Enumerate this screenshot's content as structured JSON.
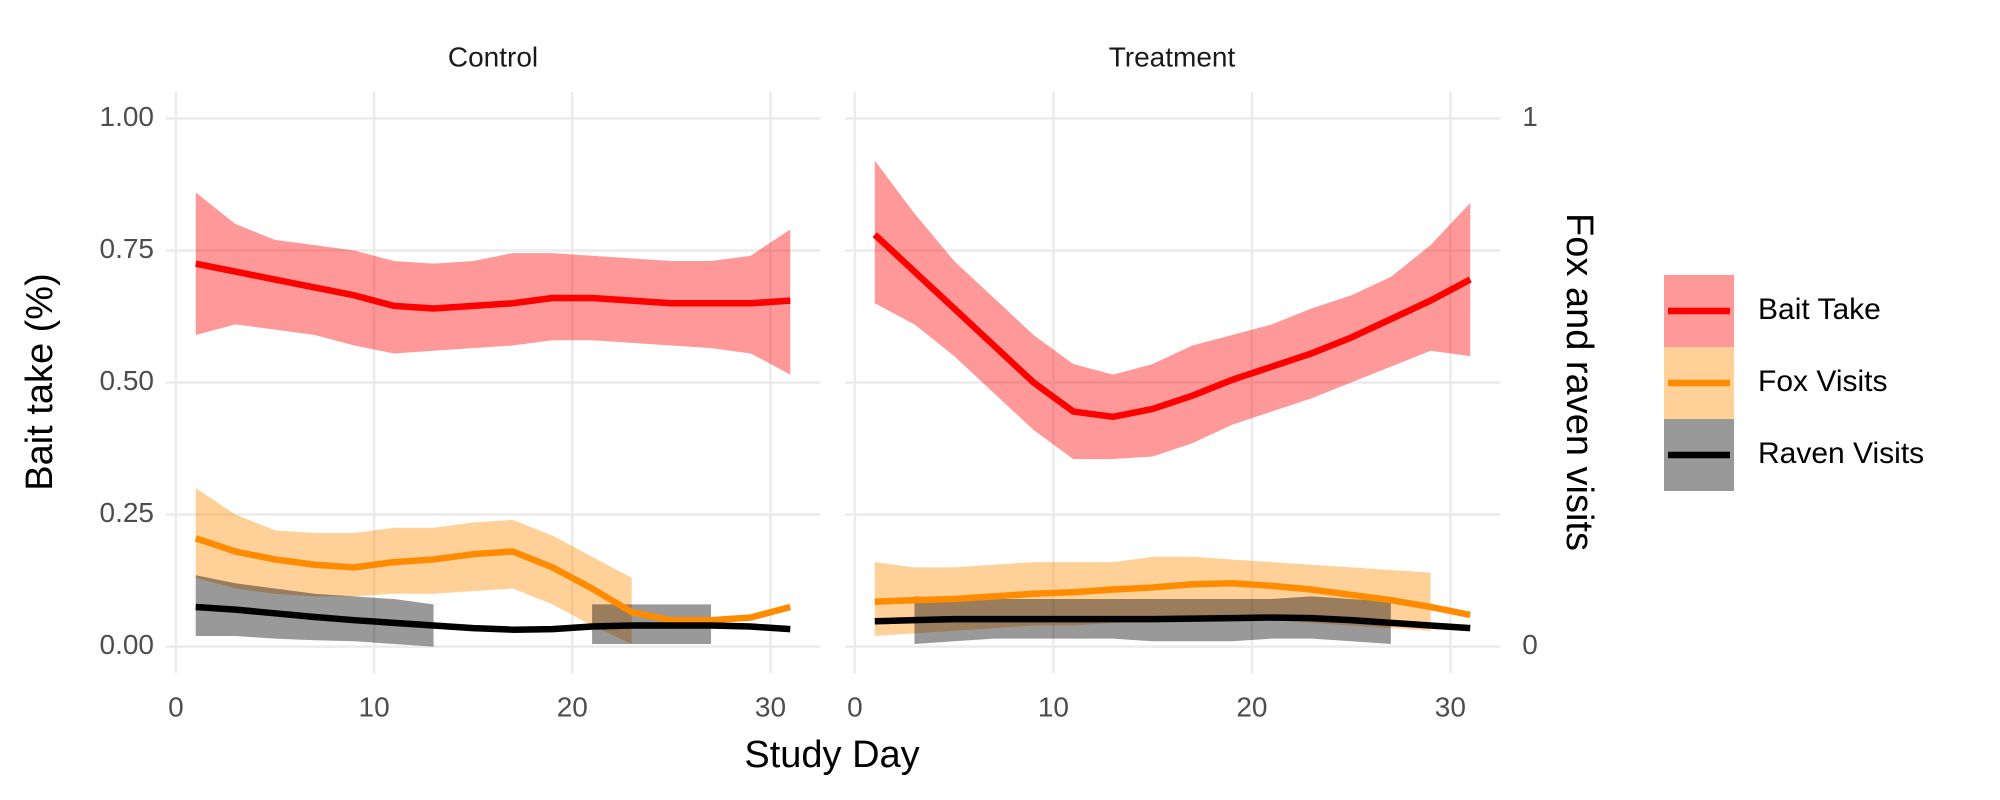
{
  "chart_data": [
    {
      "type": "line",
      "title": "Control",
      "ylabel": "Bait take (%)",
      "xlabel": "Study Day",
      "legend": "right",
      "xlim": [
        -0.5,
        32.5
      ],
      "ylim": [
        -0.05,
        1.05
      ],
      "xticks": [
        0,
        10,
        20,
        30
      ],
      "yticks": [
        {
          "value": 0,
          "label": "0.00"
        },
        {
          "value": 0.25,
          "label": "0.25"
        },
        {
          "value": 0.5,
          "label": "0.50"
        },
        {
          "value": 0.75,
          "label": "0.75"
        },
        {
          "value": 1,
          "label": "1.00"
        }
      ],
      "grid": true,
      "x": [
        1,
        3,
        5,
        7,
        9,
        11,
        13,
        15,
        17,
        19,
        21,
        23,
        25,
        27,
        29,
        31
      ],
      "series": [
        {
          "name": "Bait Take",
          "color": "#ff0000",
          "values": [
            0.725,
            0.71,
            0.695,
            0.68,
            0.665,
            0.645,
            0.64,
            0.645,
            0.65,
            0.66,
            0.66,
            0.655,
            0.65,
            0.65,
            0.65,
            0.655
          ],
          "upper": [
            0.86,
            0.8,
            0.77,
            0.76,
            0.75,
            0.73,
            0.725,
            0.73,
            0.745,
            0.745,
            0.74,
            0.735,
            0.73,
            0.73,
            0.74,
            0.79
          ],
          "lower": [
            0.59,
            0.61,
            0.6,
            0.59,
            0.57,
            0.555,
            0.56,
            0.565,
            0.57,
            0.58,
            0.58,
            0.575,
            0.57,
            0.565,
            0.555,
            0.515
          ]
        },
        {
          "name": "Fox Visits",
          "color": "#ff8c00",
          "values": [
            0.205,
            0.18,
            0.165,
            0.155,
            0.15,
            0.16,
            0.165,
            0.175,
            0.18,
            0.15,
            0.11,
            0.065,
            0.05,
            0.05,
            0.055,
            0.075
          ],
          "upper": [
            0.3,
            0.25,
            0.22,
            0.215,
            0.215,
            0.225,
            0.225,
            0.235,
            0.24,
            0.21,
            0.17,
            0.13,
            null,
            null,
            null,
            null
          ],
          "lower": [
            0.13,
            0.11,
            0.1,
            0.095,
            0.095,
            0.1,
            0.1,
            0.105,
            0.11,
            0.08,
            0.04,
            0.005,
            null,
            null,
            null,
            null
          ]
        },
        {
          "name": "Raven Visits",
          "color": "#000000",
          "values": [
            0.075,
            0.07,
            0.063,
            0.056,
            0.05,
            0.045,
            0.04,
            0.035,
            0.032,
            0.033,
            0.038,
            0.04,
            0.04,
            0.04,
            0.038,
            0.033
          ],
          "upper": [
            0.135,
            0.12,
            0.11,
            0.1,
            0.095,
            0.09,
            0.08,
            null,
            null,
            null,
            0.08,
            0.08,
            0.08,
            0.08,
            null,
            null
          ],
          "lower": [
            0.02,
            0.02,
            0.015,
            0.012,
            0.01,
            0.005,
            0,
            null,
            null,
            null,
            0.005,
            0.005,
            0.005,
            0.005,
            null,
            null
          ]
        }
      ]
    },
    {
      "type": "line",
      "title": "Treatment",
      "y2label": "Fox and raven visits",
      "xlim": [
        -0.5,
        32.5
      ],
      "ylim": [
        -0.05,
        1.05
      ],
      "xticks": [
        0,
        10,
        20,
        30
      ],
      "y2lim": [
        -0.05,
        1.05
      ],
      "y2ticks": [
        0,
        1
      ],
      "grid": true,
      "x": [
        1,
        3,
        5,
        7,
        9,
        11,
        13,
        15,
        17,
        19,
        21,
        23,
        25,
        27,
        29,
        31
      ],
      "series": [
        {
          "color": "#ff0000",
          "values": [
            0.78,
            0.71,
            0.64,
            0.57,
            0.5,
            0.445,
            0.435,
            0.45,
            0.475,
            0.505,
            0.53,
            0.555,
            0.585,
            0.62,
            0.655,
            0.695
          ],
          "upper": [
            0.92,
            0.82,
            0.73,
            0.66,
            0.59,
            0.535,
            0.515,
            0.535,
            0.57,
            0.59,
            0.61,
            0.64,
            0.665,
            0.7,
            0.76,
            0.84
          ],
          "lower": [
            0.65,
            0.61,
            0.55,
            0.48,
            0.41,
            0.355,
            0.355,
            0.36,
            0.385,
            0.42,
            0.445,
            0.47,
            0.5,
            0.53,
            0.56,
            0.55
          ]
        },
        {
          "color": "#ff8c00",
          "values": [
            0.085,
            0.088,
            0.09,
            0.095,
            0.1,
            0.103,
            0.108,
            0.112,
            0.118,
            0.12,
            0.115,
            0.108,
            0.098,
            0.088,
            0.075,
            0.06
          ],
          "upper": [
            0.16,
            0.15,
            0.15,
            0.155,
            0.16,
            0.16,
            0.16,
            0.17,
            0.17,
            0.165,
            0.16,
            0.155,
            0.15,
            0.145,
            0.14,
            null
          ],
          "lower": [
            0.02,
            0.025,
            0.03,
            0.035,
            0.04,
            0.04,
            0.045,
            0.05,
            0.05,
            0.05,
            0.05,
            0.045,
            0.04,
            0.035,
            0.03,
            null
          ]
        },
        {
          "color": "#000000",
          "values": [
            0.048,
            0.05,
            0.052,
            0.052,
            0.052,
            0.052,
            0.052,
            0.052,
            0.053,
            0.054,
            0.055,
            0.054,
            0.05,
            0.045,
            0.04,
            0.035
          ],
          "upper": [
            null,
            0.095,
            0.09,
            0.09,
            0.09,
            0.09,
            0.09,
            0.09,
            0.09,
            0.09,
            0.09,
            0.095,
            0.09,
            0.085,
            null,
            null
          ],
          "lower": [
            null,
            0.005,
            0.01,
            0.015,
            0.015,
            0.015,
            0.015,
            0.01,
            0.01,
            0.01,
            0.015,
            0.015,
            0.01,
            0.005,
            null,
            null
          ]
        }
      ]
    }
  ]
}
